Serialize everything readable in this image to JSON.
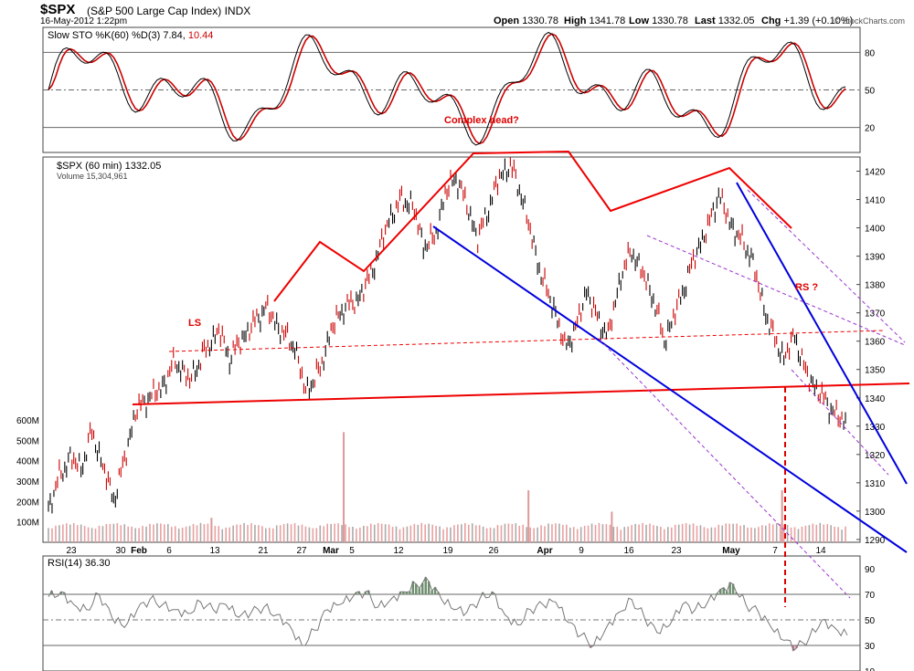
{
  "header": {
    "symbol": "$SPX",
    "name": "(S&P 500 Large Cap Index)",
    "exchange": "INDX",
    "timestamp": "16-May-2012 1:22pm",
    "open_label": "Open",
    "open": "1330.78",
    "high_label": "High",
    "high": "1341.78",
    "low_label": "Low",
    "low": "1330.78",
    "last_label": "Last",
    "last": "1332.05",
    "chg_label": "Chg",
    "chg": "+1.39 (+0.10%)",
    "brand": "© StockCharts.com"
  },
  "chart_data": [
    {
      "type": "line",
      "panel": "stochastic",
      "legend": "Slow STO %K(60) %D(3) 7.84, 10.44",
      "legend_parts": [
        "Slow STO %K(60) %D(3) 7.84,",
        "10.44"
      ],
      "ylim": [
        0,
        100
      ],
      "yticks": [
        20,
        50,
        80
      ],
      "annotation": "Complex head?",
      "series": [
        {
          "name": "%K",
          "color": "#000000"
        },
        {
          "name": "%D",
          "color": "#cc0000"
        }
      ]
    },
    {
      "type": "line",
      "panel": "price",
      "legend": "$SPX (60 min) 1332.05",
      "volume_legend": "Volume 15,304,961",
      "ylim": [
        1289,
        1425
      ],
      "yticks": [
        1290,
        1300,
        1310,
        1320,
        1330,
        1340,
        1350,
        1360,
        1370,
        1380,
        1390,
        1400,
        1410,
        1420
      ],
      "volume_ticks": [
        "100M",
        "200M",
        "300M",
        "400M",
        "500M",
        "600M"
      ],
      "volume_tick_values": [
        100,
        200,
        300,
        400,
        500,
        600
      ],
      "x_tick_labels": [
        "23",
        "30",
        "Feb",
        "6",
        "13",
        "21",
        "27",
        "Mar",
        "5",
        "12",
        "19",
        "26",
        "Apr",
        "9",
        "16",
        "23",
        "May",
        "7",
        "14"
      ],
      "annotations": {
        "ls": "LS",
        "rs": "RS ?"
      },
      "close_points": [
        [
          0,
          1301
        ],
        [
          6,
          1312
        ],
        [
          12,
          1319
        ],
        [
          18,
          1315
        ],
        [
          24,
          1328
        ],
        [
          30,
          1316
        ],
        [
          36,
          1304
        ],
        [
          42,
          1318
        ],
        [
          48,
          1335
        ],
        [
          55,
          1340
        ],
        [
          62,
          1343
        ],
        [
          70,
          1353
        ],
        [
          78,
          1346
        ],
        [
          86,
          1356
        ],
        [
          94,
          1364
        ],
        [
          100,
          1354
        ],
        [
          106,
          1360
        ],
        [
          113,
          1366
        ],
        [
          120,
          1372
        ],
        [
          128,
          1364
        ],
        [
          136,
          1358
        ],
        [
          142,
          1342
        ],
        [
          150,
          1350
        ],
        [
          156,
          1364
        ],
        [
          163,
          1372
        ],
        [
          170,
          1374
        ],
        [
          177,
          1382
        ],
        [
          183,
          1393
        ],
        [
          188,
          1403
        ],
        [
          195,
          1410
        ],
        [
          201,
          1408
        ],
        [
          207,
          1394
        ],
        [
          213,
          1396
        ],
        [
          219,
          1412
        ],
        [
          225,
          1418
        ],
        [
          231,
          1408
        ],
        [
          237,
          1396
        ],
        [
          243,
          1407
        ],
        [
          249,
          1418
        ],
        [
          255,
          1422
        ],
        [
          261,
          1412
        ],
        [
          267,
          1396
        ],
        [
          273,
          1381
        ],
        [
          279,
          1372
        ],
        [
          285,
          1358
        ],
        [
          291,
          1364
        ],
        [
          297,
          1378
        ],
        [
          303,
          1368
        ],
        [
          309,
          1362
        ],
        [
          316,
          1383
        ],
        [
          322,
          1392
        ],
        [
          328,
          1384
        ],
        [
          334,
          1375
        ],
        [
          340,
          1360
        ],
        [
          346,
          1370
        ],
        [
          352,
          1381
        ],
        [
          358,
          1392
        ],
        [
          364,
          1400
        ],
        [
          370,
          1412
        ],
        [
          376,
          1402
        ],
        [
          382,
          1396
        ],
        [
          388,
          1390
        ],
        [
          394,
          1374
        ],
        [
          400,
          1362
        ],
        [
          406,
          1354
        ],
        [
          412,
          1362
        ],
        [
          418,
          1349
        ],
        [
          424,
          1343
        ],
        [
          430,
          1338
        ],
        [
          436,
          1333
        ],
        [
          441,
          1331
        ]
      ],
      "volume_bars": [
        {
          "idx": 163,
          "v": 540
        },
        {
          "idx": 265,
          "v": 255
        },
        {
          "idx": 405,
          "v": 255
        },
        {
          "idx": 311,
          "v": 150
        },
        {
          "idx": 90,
          "v": 120
        }
      ],
      "volume_base": 60
    },
    {
      "type": "line",
      "panel": "rsi",
      "legend": "RSI(14) 36.30",
      "ylim": [
        10,
        100
      ],
      "yticks": [
        10,
        30,
        50,
        70,
        90
      ],
      "x": [
        0,
        7,
        14,
        21,
        28,
        35,
        42,
        49,
        56,
        63,
        70,
        77,
        84,
        91,
        98,
        105,
        112,
        119,
        126,
        133,
        140,
        147,
        154,
        161,
        168,
        175,
        182,
        189,
        196,
        203,
        210,
        217,
        224,
        231,
        238,
        245,
        252,
        259,
        266,
        273,
        280,
        287,
        294,
        301,
        308,
        315,
        322,
        329,
        336,
        343,
        350,
        357,
        364,
        371,
        378,
        385,
        392,
        399,
        406,
        413,
        420,
        427,
        434,
        441
      ],
      "values": [
        68,
        72,
        62,
        58,
        70,
        52,
        44,
        58,
        66,
        62,
        58,
        55,
        64,
        58,
        62,
        52,
        56,
        60,
        54,
        46,
        30,
        42,
        58,
        62,
        68,
        72,
        60,
        66,
        72,
        78,
        80,
        66,
        58,
        56,
        66,
        72,
        54,
        46,
        58,
        62,
        64,
        48,
        38,
        30,
        44,
        56,
        66,
        52,
        40,
        46,
        62,
        58,
        64,
        74,
        78,
        62,
        56,
        44,
        34,
        28,
        36,
        50,
        44,
        38
      ]
    }
  ],
  "colors": {
    "price_up": "#000000",
    "price_down": "#cc0000",
    "hs_line": "#ee0000",
    "trend_blue": "#0000dd",
    "channel_purple": "#9933cc",
    "volume": "#e8a0a0",
    "rsi_line": "#777777"
  }
}
